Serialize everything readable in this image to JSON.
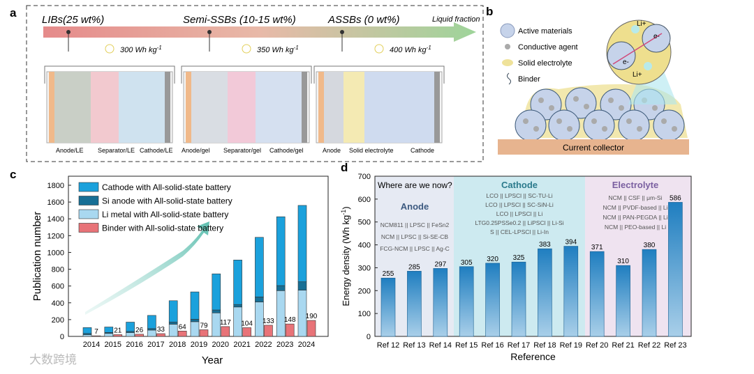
{
  "panel_a": {
    "label": "a",
    "stages": [
      {
        "title": "LIBs(25  wt%)",
        "energy": "300 Wh kg",
        "energy_sup": "-1",
        "layers": [
          "Anode/LE",
          "Separator/LE",
          "Cathode/LE"
        ]
      },
      {
        "title": "Semi-SSBs (10-15 wt%)",
        "energy": "350 Wh kg",
        "energy_sup": "-1",
        "layers": [
          "Anode/gel",
          "Separator/gel",
          "Cathode/gel"
        ]
      },
      {
        "title": "ASSBs (0 wt%)",
        "energy": "400 Wh kg",
        "energy_sup": "-1",
        "layers": [
          "Anode",
          "Solid electrolyte",
          "Cathode"
        ]
      }
    ],
    "arrow_label": "Liquid fraction"
  },
  "panel_b": {
    "label": "b",
    "legend": [
      "Active materials",
      "Conductive agent",
      "Solid electrolyte",
      "Binder"
    ],
    "inset_labels": [
      "Li+",
      "e-",
      "e-",
      "Li+"
    ],
    "collector": "Current collector"
  },
  "watermark": "大数跨境",
  "colors": {
    "cathode": "#1ba1dc",
    "si": "#176f95",
    "li": "#a9d8f0",
    "binder": "#e87378",
    "bar_d": "#2a86c4"
  },
  "chart_data": [
    {
      "panel": "c",
      "type": "bar",
      "stacked": true,
      "xlabel": "Year",
      "ylabel": "Publication number",
      "ylim": [
        0,
        1900
      ],
      "yticks": [
        0,
        200,
        400,
        600,
        800,
        1000,
        1200,
        1400,
        1600,
        1800
      ],
      "categories": [
        "2014",
        "2015",
        "2016",
        "2017",
        "2018",
        "2019",
        "2020",
        "2021",
        "2022",
        "2023",
        "2024"
      ],
      "series": [
        {
          "name": "Li metal with All-solid-state battery",
          "values": [
            20,
            35,
            45,
            75,
            145,
            175,
            280,
            350,
            410,
            545,
            550
          ]
        },
        {
          "name": "Si anode with All-solid-state battery",
          "values": [
            15,
            12,
            15,
            18,
            25,
            30,
            35,
            30,
            60,
            60,
            100
          ]
        },
        {
          "name": "Cathode with All-solid-state battery",
          "values": [
            70,
            65,
            110,
            157,
            255,
            325,
            430,
            530,
            710,
            820,
            910
          ]
        },
        {
          "name": "Binder with All-solid-state battery",
          "values": [
            7,
            21,
            26,
            33,
            64,
            79,
            117,
            104,
            133,
            148,
            190
          ]
        }
      ],
      "legend_order": [
        "Cathode with All-solid-state battery",
        "Si anode with All-solid-state battery",
        "Li metal with All-solid-state battery",
        "Binder with All-solid-state battery"
      ],
      "legend_position": "top-left"
    },
    {
      "panel": "d",
      "type": "bar",
      "xlabel": "Reference",
      "ylabel": "Energy density (Wh kg",
      "ylabel_sup": "-1",
      "ylabel_end": ")",
      "ylim": [
        0,
        700
      ],
      "yticks": [
        0,
        100,
        200,
        300,
        400,
        500,
        600,
        700
      ],
      "categories": [
        "Ref 12",
        "Ref 13",
        "Ref 14",
        "Ref 15",
        "Ref 16",
        "Ref 17",
        "Ref 18",
        "Ref 19",
        "Ref 20",
        "Ref 21",
        "Ref 22",
        "Ref 23"
      ],
      "values": [
        255,
        285,
        297,
        305,
        320,
        325,
        383,
        394,
        371,
        310,
        380,
        586
      ],
      "annotation": "Where are we now?",
      "groups": [
        {
          "title": "Anode",
          "color": "#e6eaf3",
          "lines": [
            "NCM811 || LPSC || FeSn2",
            "NCM || LPSC || Si-SE-CB",
            "FCG-NCM || LPSC || Ag-C"
          ]
        },
        {
          "title": "Cathode",
          "color": "#cdeaf0",
          "lines": [
            "LCO || LPSCl || SC-TU-Li",
            "LCO || LPSCl || SC-SiN-Li",
            "LCO || LPSCl || Li",
            "LTG0.25PSSe0.2 || LiPSCl || Li-Si",
            "S || CEL-LPSCl || Li-In"
          ]
        },
        {
          "title": "Electrolyte",
          "color": "#efe3f0",
          "lines": [
            "NCM || CSF || μm-Si",
            "NCM || PVDF-based || Li",
            "NCM || PAN-PEGDA || Li",
            "NCM || PEO-based || Li"
          ]
        }
      ]
    }
  ]
}
